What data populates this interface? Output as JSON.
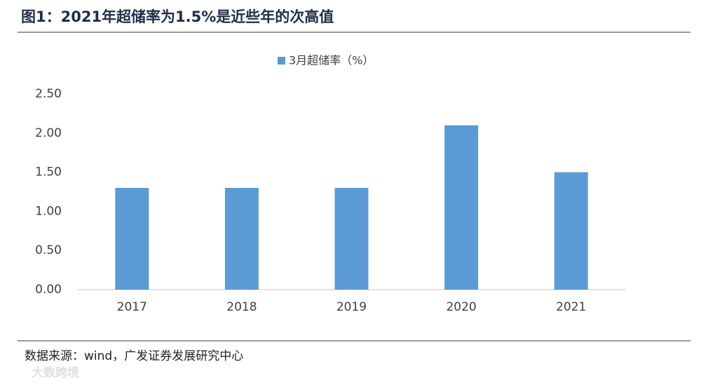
{
  "chart_data": {
    "type": "bar",
    "title": "图1：2021年超储率为1.5%是近些年的次高值",
    "legend": "3月超储率（%）",
    "categories": [
      "2017",
      "2018",
      "2019",
      "2020",
      "2021"
    ],
    "values": [
      1.3,
      1.3,
      1.3,
      2.1,
      1.5
    ],
    "color": "#5b9bd5",
    "ylim": [
      0,
      2.5
    ],
    "yticks": [
      {
        "value": 0,
        "label": "0.00"
      },
      {
        "value": 0.5,
        "label": "0.50"
      },
      {
        "value": 1,
        "label": "1.00"
      },
      {
        "value": 1.5,
        "label": "1.50"
      },
      {
        "value": 2,
        "label": "2.00"
      },
      {
        "value": 2.5,
        "label": "2.50"
      }
    ],
    "grid": false,
    "source": "数据来源：wind，广发证券发展研究中心",
    "watermark": "大数跨境"
  }
}
